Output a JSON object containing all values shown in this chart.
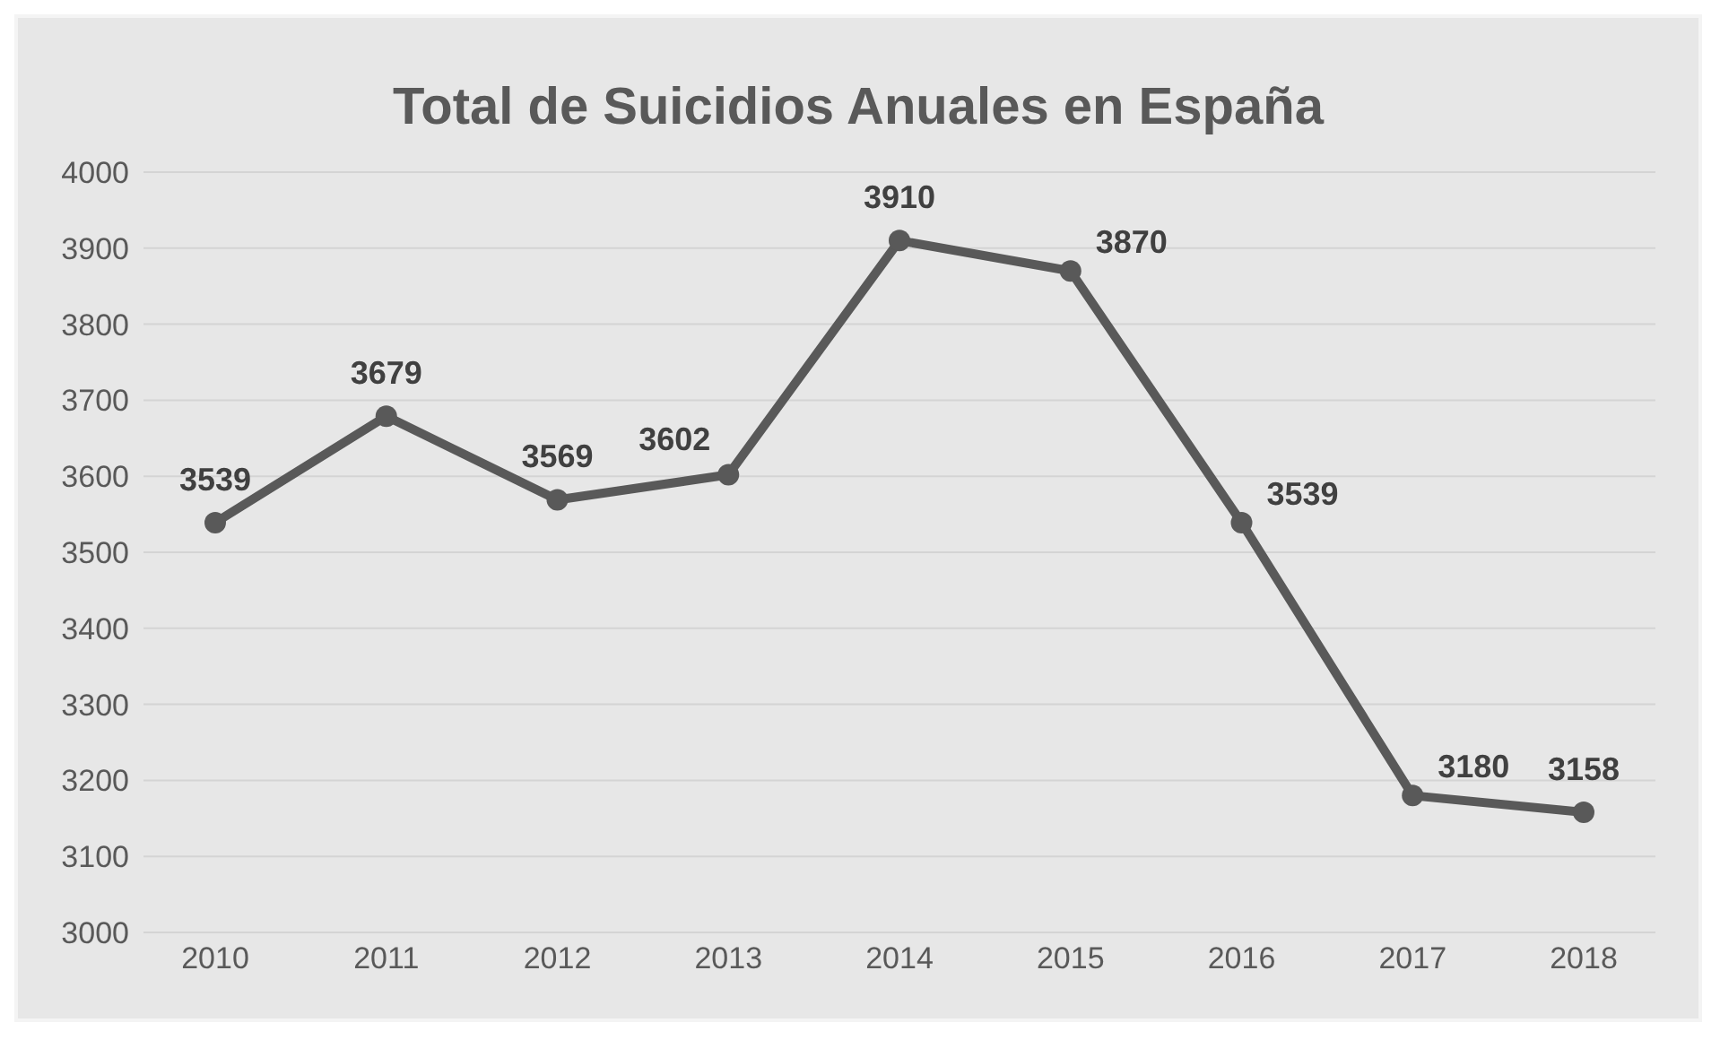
{
  "chart_data": {
    "type": "line",
    "title": "Total de Suicidios Anuales en España",
    "categories": [
      "2010",
      "2011",
      "2012",
      "2013",
      "2014",
      "2015",
      "2016",
      "2017",
      "2018"
    ],
    "series": [
      {
        "color": "#595959",
        "values": [
          3539,
          3679,
          3569,
          3602,
          3910,
          3870,
          3539,
          3180,
          3158
        ]
      }
    ],
    "ylim": [
      3000,
      4000
    ],
    "yticks": [
      3000,
      3100,
      3200,
      3300,
      3400,
      3500,
      3600,
      3700,
      3800,
      3900,
      4000
    ],
    "grid": "y",
    "marker": "circle",
    "line_style": "solid",
    "data_labels": true
  }
}
